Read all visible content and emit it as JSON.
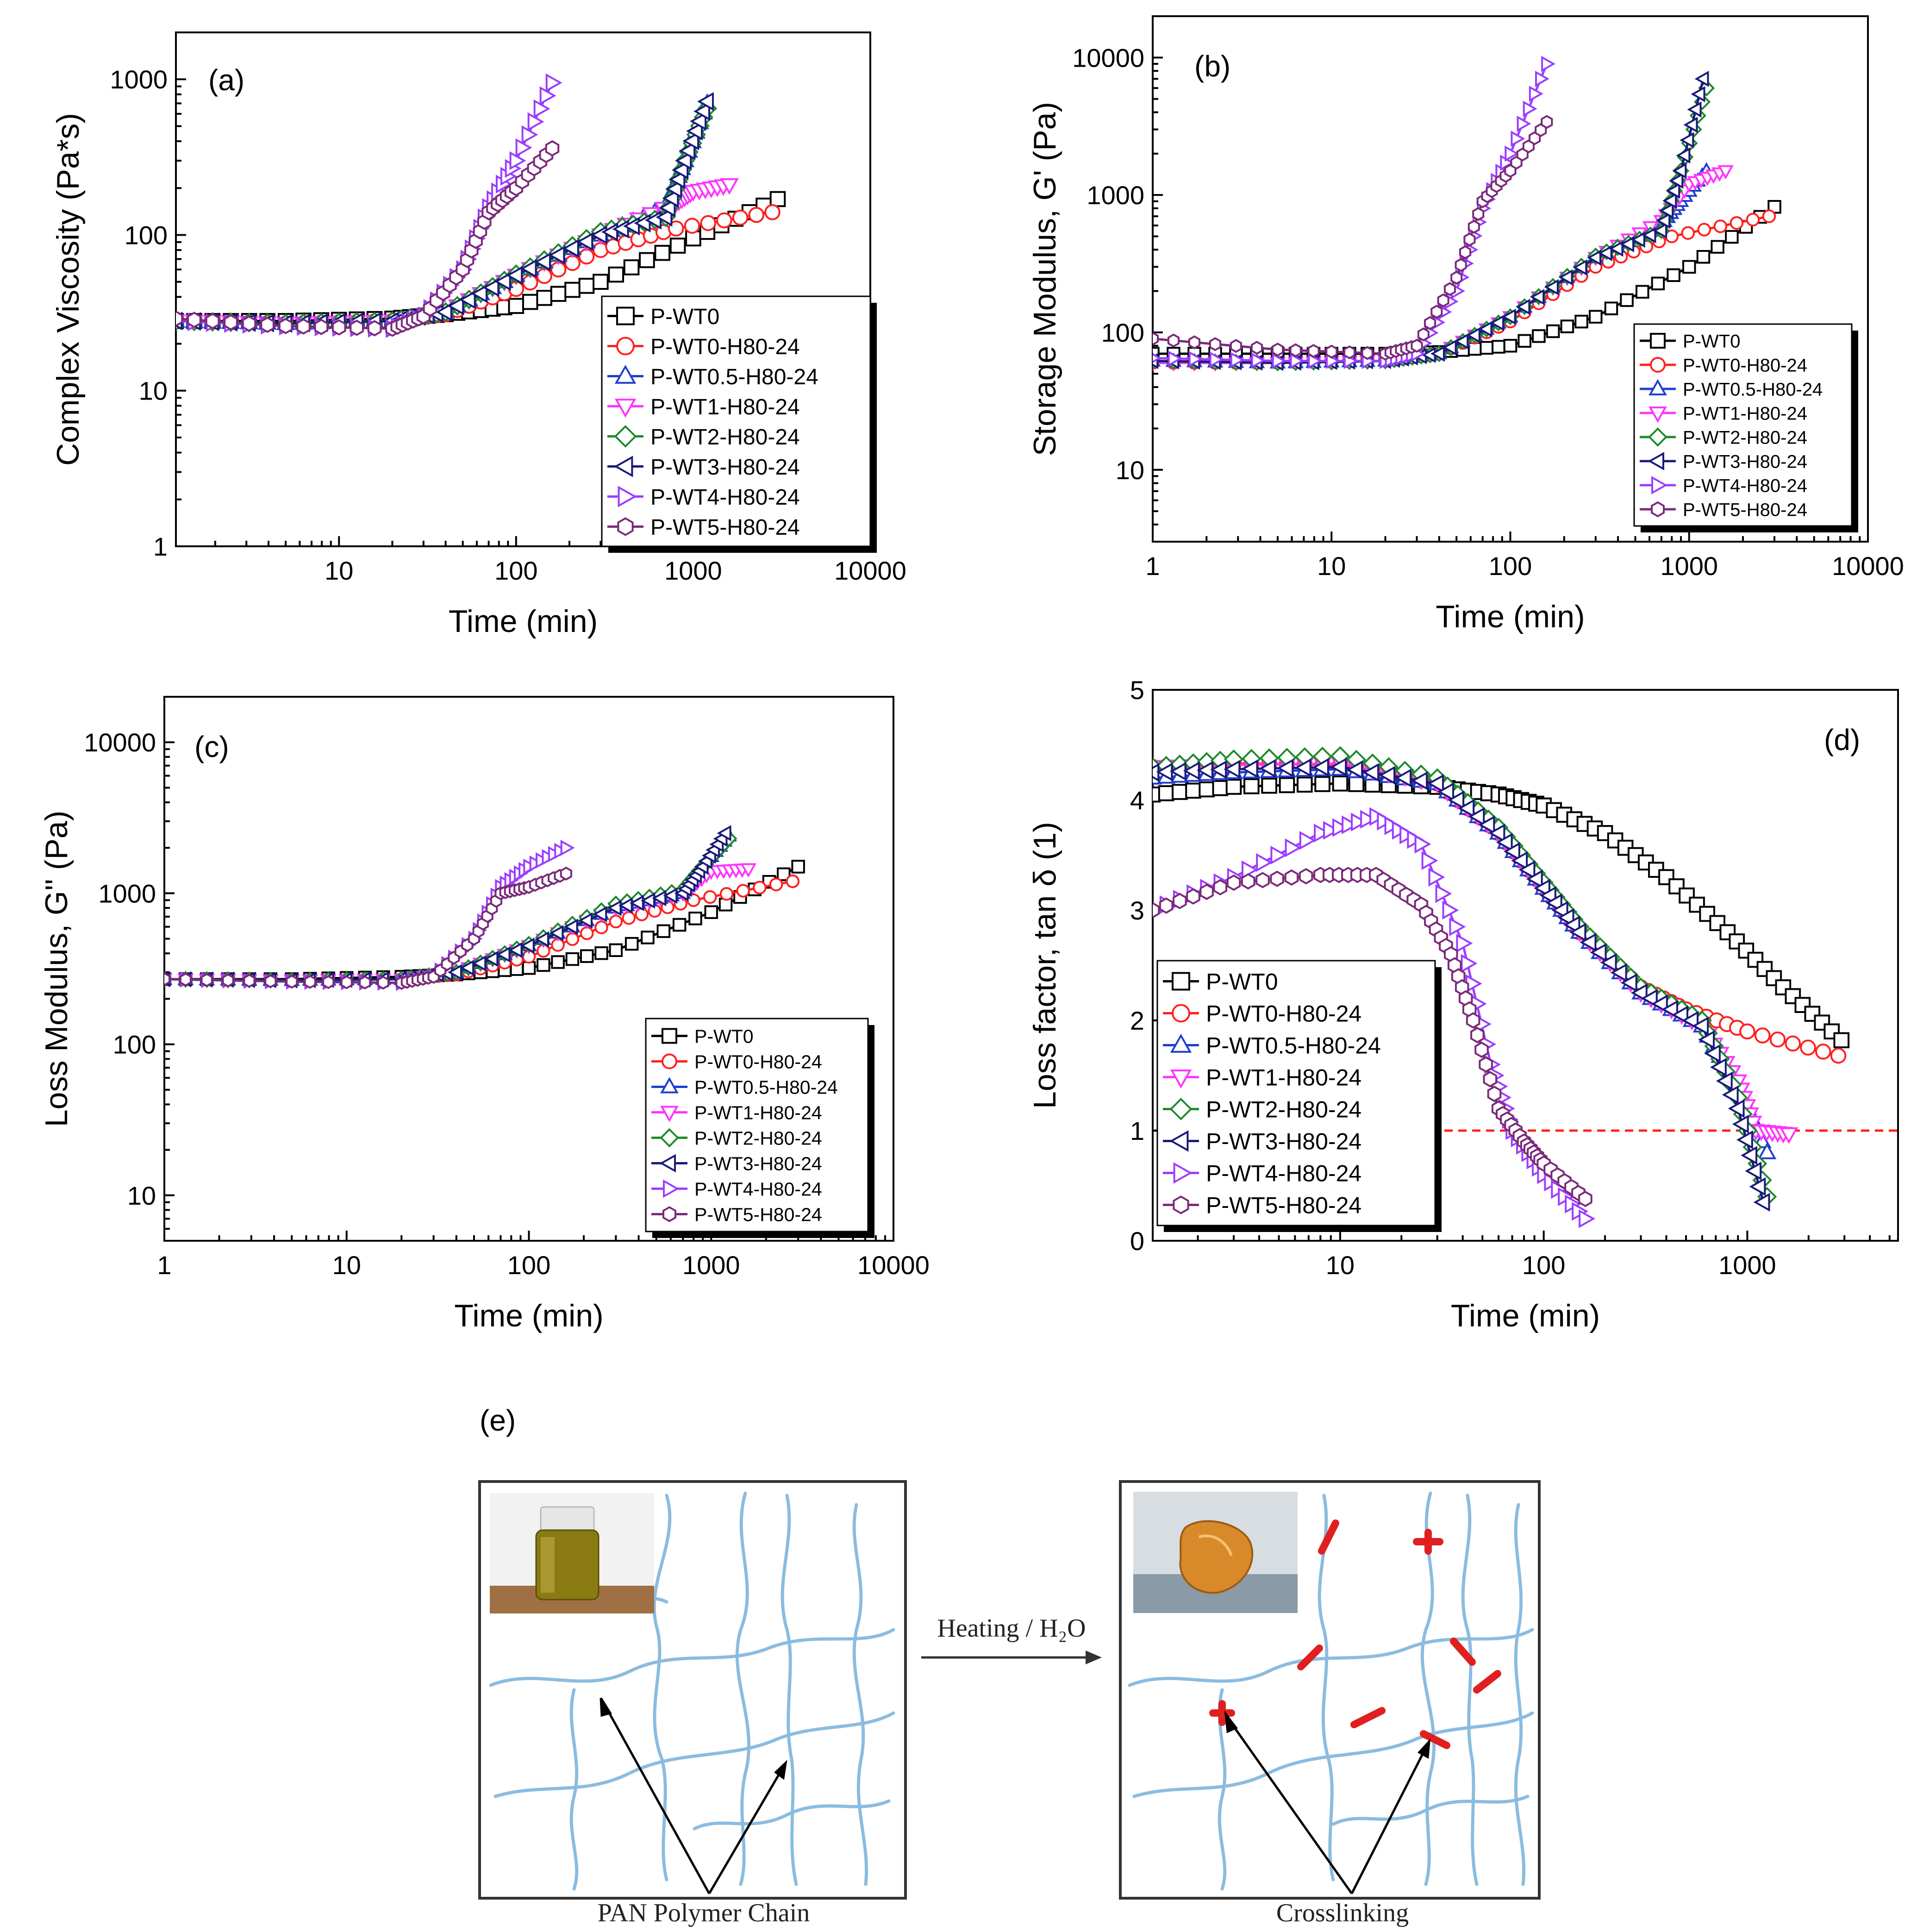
{
  "series_names": [
    "P-WT0",
    "P-WT0-H80-24",
    "P-WT0.5-H80-24",
    "P-WT1-H80-24",
    "P-WT2-H80-24",
    "P-WT3-H80-24",
    "P-WT4-H80-24",
    "P-WT5-H80-24"
  ],
  "colors": [
    "#000000",
    "#ff2020",
    "#1f3fd0",
    "#ff33ff",
    "#1f8a2a",
    "#1a1a7a",
    "#9b3dff",
    "#7a2a7a"
  ],
  "markers": [
    "square",
    "circle",
    "triangle-up",
    "triangle-down",
    "diamond",
    "triangle-left",
    "triangle-right",
    "hexagon"
  ],
  "chart_data": [
    {
      "id": "a",
      "type": "line",
      "panel_label": "(a)",
      "xscale": "log",
      "yscale": "log",
      "xlabel": "Time (min)",
      "ylabel": "Complex Viscosity (Pa*s)",
      "xlim": [
        1.2,
        10000
      ],
      "ylim": [
        1,
        2000
      ],
      "xticks": [
        10,
        100,
        1000,
        10000
      ],
      "xtick_labels": [
        "10",
        "100",
        "1000",
        "10000"
      ],
      "yticks": [
        1,
        10,
        100,
        1000
      ],
      "ytick_labels": [
        "1",
        "10",
        "100",
        "1000"
      ],
      "legend_position": "lower-right",
      "series": [
        {
          "name": "P-WT0",
          "x": [
            1.2,
            5,
            20,
            40,
            100,
            300,
            1000,
            3000
          ],
          "y": [
            28,
            28,
            29,
            31,
            35,
            50,
            95,
            170
          ]
        },
        {
          "name": "P-WT0-H80-24",
          "x": [
            1.2,
            5,
            20,
            40,
            100,
            300,
            800,
            2800
          ],
          "y": [
            28,
            27,
            28,
            31,
            45,
            80,
            110,
            140
          ]
        },
        {
          "name": "P-WT0.5-H80-24",
          "x": [
            1.2,
            5,
            20,
            40,
            100,
            300,
            700,
            900,
            1200
          ],
          "y": [
            28,
            27,
            28,
            32,
            55,
            100,
            150,
            300,
            700
          ]
        },
        {
          "name": "P-WT1-H80-24",
          "x": [
            1.2,
            5,
            20,
            40,
            100,
            300,
            800,
            1000,
            1600
          ],
          "y": [
            28,
            27,
            28,
            32,
            55,
            100,
            160,
            190,
            210
          ]
        },
        {
          "name": "P-WT2-H80-24",
          "x": [
            1.2,
            5,
            20,
            40,
            100,
            300,
            700,
            900,
            1200
          ],
          "y": [
            28,
            27,
            28,
            32,
            56,
            105,
            130,
            300,
            650
          ]
        },
        {
          "name": "P-WT3-H80-24",
          "x": [
            1.2,
            5,
            20,
            40,
            100,
            300,
            700,
            900,
            1200
          ],
          "y": [
            28,
            27,
            28,
            32,
            55,
            100,
            130,
            300,
            720
          ]
        },
        {
          "name": "P-WT4-H80-24",
          "x": [
            1.2,
            5,
            20,
            30,
            50,
            70,
            100,
            160
          ],
          "y": [
            28,
            26,
            25,
            30,
            60,
            150,
            300,
            950
          ]
        },
        {
          "name": "P-WT5-H80-24",
          "x": [
            1.2,
            5,
            20,
            30,
            50,
            70,
            100,
            160
          ],
          "y": [
            29,
            26,
            25,
            30,
            60,
            140,
            200,
            360
          ]
        }
      ]
    },
    {
      "id": "b",
      "type": "line",
      "panel_label": "(b)",
      "xscale": "log",
      "yscale": "log",
      "xlabel": "Time (min)",
      "ylabel": "Storage Modulus, G' (Pa)",
      "xlim": [
        1,
        10000
      ],
      "ylim": [
        3,
        20000
      ],
      "xticks": [
        1,
        10,
        100,
        1000,
        10000
      ],
      "xtick_labels": [
        "1",
        "10",
        "100",
        "1000",
        "10000"
      ],
      "yticks": [
        10,
        100,
        1000,
        10000
      ],
      "ytick_labels": [
        "10",
        "100",
        "1000",
        "10000"
      ],
      "legend_position": "lower-right",
      "series": [
        {
          "name": "P-WT0",
          "x": [
            1,
            5,
            20,
            40,
            100,
            300,
            1000,
            3000
          ],
          "y": [
            70,
            70,
            70,
            72,
            80,
            130,
            300,
            820
          ]
        },
        {
          "name": "P-WT0-H80-24",
          "x": [
            1,
            5,
            20,
            40,
            100,
            300,
            800,
            2800
          ],
          "y": [
            60,
            60,
            62,
            70,
            120,
            300,
            500,
            700
          ]
        },
        {
          "name": "P-WT0.5-H80-24",
          "x": [
            1,
            5,
            20,
            40,
            100,
            300,
            700,
            900,
            1250
          ],
          "y": [
            62,
            60,
            62,
            70,
            130,
            350,
            600,
            900,
            1500
          ]
        },
        {
          "name": "P-WT1-H80-24",
          "x": [
            1,
            5,
            20,
            40,
            100,
            300,
            700,
            1000,
            1600
          ],
          "y": [
            60,
            60,
            62,
            70,
            130,
            350,
            650,
            1200,
            1500
          ]
        },
        {
          "name": "P-WT2-H80-24",
          "x": [
            1,
            5,
            20,
            40,
            100,
            300,
            700,
            900,
            1250
          ],
          "y": [
            62,
            60,
            62,
            70,
            130,
            360,
            550,
            1500,
            6000
          ]
        },
        {
          "name": "P-WT3-H80-24",
          "x": [
            1,
            5,
            20,
            40,
            100,
            300,
            700,
            900,
            1200
          ],
          "y": [
            62,
            60,
            62,
            70,
            130,
            350,
            550,
            1500,
            7000
          ]
        },
        {
          "name": "P-WT4-H80-24",
          "x": [
            1,
            5,
            20,
            30,
            50,
            70,
            100,
            160
          ],
          "y": [
            65,
            62,
            62,
            70,
            200,
            800,
            2000,
            9000
          ]
        },
        {
          "name": "P-WT5-H80-24",
          "x": [
            1,
            5,
            20,
            30,
            50,
            70,
            100,
            160
          ],
          "y": [
            90,
            75,
            70,
            80,
            250,
            900,
            1500,
            3400
          ]
        }
      ]
    },
    {
      "id": "c",
      "type": "line",
      "panel_label": "(c)",
      "xscale": "log",
      "yscale": "log",
      "xlabel": "Time (min)",
      "ylabel": "Loss Modulus, G'' (Pa)",
      "xlim": [
        1,
        10000
      ],
      "ylim": [
        5,
        20000
      ],
      "xticks": [
        1,
        10,
        100,
        1000,
        10000
      ],
      "xtick_labels": [
        "1",
        "10",
        "100",
        "1000",
        "10000"
      ],
      "yticks": [
        10,
        100,
        1000,
        10000
      ],
      "ytick_labels": [
        "10",
        "100",
        "1000",
        "10000"
      ],
      "legend_position": "lower-right",
      "series": [
        {
          "name": "P-WT0",
          "x": [
            1,
            5,
            20,
            40,
            100,
            300,
            1000,
            3000
          ],
          "y": [
            270,
            270,
            280,
            290,
            320,
            420,
            750,
            1500
          ]
        },
        {
          "name": "P-WT0-H80-24",
          "x": [
            1,
            5,
            20,
            40,
            100,
            300,
            800,
            2800
          ],
          "y": [
            270,
            265,
            270,
            290,
            380,
            650,
            900,
            1200
          ]
        },
        {
          "name": "P-WT0.5-H80-24",
          "x": [
            1,
            5,
            20,
            40,
            100,
            300,
            700,
            900,
            1250
          ],
          "y": [
            270,
            265,
            270,
            300,
            450,
            800,
            1000,
            1500,
            2400
          ]
        },
        {
          "name": "P-WT1-H80-24",
          "x": [
            1,
            5,
            20,
            40,
            100,
            300,
            700,
            1000,
            1600
          ],
          "y": [
            270,
            265,
            270,
            300,
            450,
            800,
            1000,
            1400,
            1450
          ]
        },
        {
          "name": "P-WT2-H80-24",
          "x": [
            1,
            5,
            20,
            40,
            100,
            300,
            700,
            900,
            1250
          ],
          "y": [
            270,
            265,
            270,
            300,
            460,
            850,
            1050,
            1500,
            2300
          ]
        },
        {
          "name": "P-WT3-H80-24",
          "x": [
            1,
            5,
            20,
            40,
            100,
            300,
            700,
            900,
            1200
          ],
          "y": [
            270,
            265,
            270,
            300,
            450,
            800,
            1000,
            1500,
            2500
          ]
        },
        {
          "name": "P-WT4-H80-24",
          "x": [
            1,
            5,
            20,
            30,
            50,
            70,
            100,
            160
          ],
          "y": [
            270,
            260,
            255,
            280,
            500,
            1100,
            1500,
            2000
          ]
        },
        {
          "name": "P-WT5-H80-24",
          "x": [
            1,
            5,
            20,
            30,
            50,
            70,
            100,
            160
          ],
          "y": [
            270,
            260,
            255,
            280,
            500,
            1000,
            1100,
            1350
          ]
        }
      ]
    },
    {
      "id": "d",
      "type": "line",
      "panel_label": "(d)",
      "xscale": "log",
      "yscale": "linear",
      "xlabel": "Time (min)",
      "ylabel": "Loss factor, tan δ (1)",
      "xlim": [
        1.2,
        5500
      ],
      "ylim": [
        0,
        5
      ],
      "xticks": [
        10,
        100,
        1000
      ],
      "xtick_labels": [
        "10",
        "100",
        "1000"
      ],
      "yticks": [
        0,
        1,
        2,
        3,
        4,
        5
      ],
      "ytick_labels": [
        "0",
        "1",
        "2",
        "3",
        "4",
        "5"
      ],
      "legend_position": "lower-left",
      "reference_line": {
        "y": 1,
        "style": "dashed",
        "color": "#ff2020"
      },
      "series": [
        {
          "name": "P-WT0",
          "x": [
            1.2,
            3,
            10,
            30,
            60,
            100,
            200,
            400,
            800,
            1500,
            2900
          ],
          "y": [
            4.05,
            4.12,
            4.15,
            4.12,
            4.05,
            3.95,
            3.7,
            3.3,
            2.8,
            2.3,
            1.82
          ]
        },
        {
          "name": "P-WT0-H80-24",
          "x": [
            1.2,
            3,
            10,
            30,
            60,
            100,
            150,
            300,
            500,
            1000,
            2800
          ],
          "y": [
            4.3,
            4.33,
            4.32,
            4.15,
            3.7,
            3.2,
            2.8,
            2.3,
            2.1,
            1.9,
            1.68
          ]
        },
        {
          "name": "P-WT0.5-H80-24",
          "x": [
            1.2,
            3,
            10,
            30,
            60,
            100,
            150,
            300,
            600,
            900,
            1250
          ],
          "y": [
            4.2,
            4.25,
            4.28,
            4.15,
            3.7,
            3.2,
            2.8,
            2.25,
            1.95,
            1.4,
            0.8
          ]
        },
        {
          "name": "P-WT1-H80-24",
          "x": [
            1.2,
            3,
            10,
            30,
            60,
            100,
            150,
            300,
            600,
            900,
            1100,
            1600
          ],
          "y": [
            4.3,
            4.32,
            4.33,
            4.15,
            3.7,
            3.2,
            2.8,
            2.25,
            1.95,
            1.45,
            1.0,
            0.97
          ]
        },
        {
          "name": "P-WT2-H80-24",
          "x": [
            1.2,
            3,
            10,
            30,
            60,
            100,
            150,
            300,
            600,
            900,
            1250
          ],
          "y": [
            4.3,
            4.37,
            4.4,
            4.2,
            3.75,
            3.25,
            2.85,
            2.3,
            2.0,
            1.3,
            0.4
          ]
        },
        {
          "name": "P-WT3-H80-24",
          "x": [
            1.2,
            3,
            10,
            30,
            60,
            100,
            150,
            300,
            600,
            900,
            1200
          ],
          "y": [
            4.25,
            4.28,
            4.3,
            4.15,
            3.7,
            3.2,
            2.8,
            2.25,
            1.95,
            1.2,
            0.35
          ]
        },
        {
          "name": "P-WT4-H80-24",
          "x": [
            1.2,
            3,
            8,
            15,
            25,
            40,
            55,
            70,
            100,
            160
          ],
          "y": [
            3.0,
            3.3,
            3.7,
            3.85,
            3.6,
            2.7,
            1.6,
            1.0,
            0.6,
            0.2
          ]
        },
        {
          "name": "P-WT5-H80-24",
          "x": [
            1.2,
            3,
            8,
            15,
            25,
            35,
            45,
            60,
            80,
            100,
            160
          ],
          "y": [
            3.0,
            3.25,
            3.32,
            3.32,
            3.05,
            2.6,
            2.0,
            1.2,
            0.9,
            0.7,
            0.38
          ]
        }
      ]
    }
  ],
  "diagram": {
    "panel_label": "(e)",
    "arrow_label": "Heating / H₂O",
    "left_caption": "PAN Polymer Chain",
    "right_caption": "Crosslinking"
  }
}
